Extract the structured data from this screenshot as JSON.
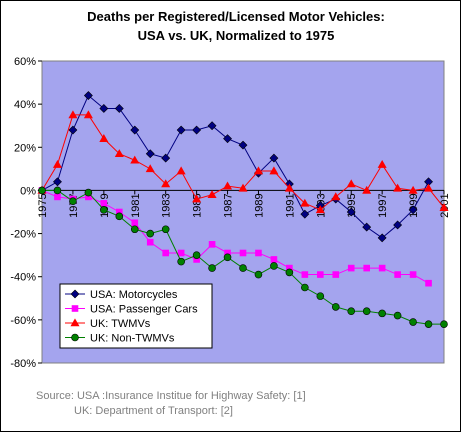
{
  "chart_data": {
    "type": "line",
    "title": [
      "Deaths per Registered/Licensed Motor Vehicles:",
      "USA vs. UK, Normalized to 1975"
    ],
    "x": [
      1975,
      1976,
      1977,
      1978,
      1979,
      1980,
      1981,
      1982,
      1983,
      1984,
      1985,
      1986,
      1987,
      1988,
      1989,
      1990,
      1991,
      1992,
      1993,
      1994,
      1995,
      1996,
      1997,
      1998,
      1999,
      2000,
      2001
    ],
    "xlim": [
      1975,
      2001
    ],
    "xticks": [
      1975,
      1977,
      1979,
      1981,
      1983,
      1985,
      1987,
      1989,
      1991,
      1993,
      1995,
      1997,
      1999,
      2001
    ],
    "ylim": [
      -80,
      60
    ],
    "yticks": [
      {
        "value": -80,
        "label": "-80%"
      },
      {
        "value": -60,
        "label": "-60%"
      },
      {
        "value": -40,
        "label": "-40%"
      },
      {
        "value": -20,
        "label": "-20%"
      },
      {
        "value": 0,
        "label": "0%"
      },
      {
        "value": 20,
        "label": "20%"
      },
      {
        "value": 40,
        "label": "40%"
      },
      {
        "value": 60,
        "label": "60%"
      }
    ],
    "legend": "bottom-left",
    "series": [
      {
        "name": "USA: Motorcycles",
        "color": "#000080",
        "marker": "diamond",
        "values": [
          0,
          4,
          28,
          44,
          38,
          38,
          28,
          17,
          15,
          28,
          28,
          30,
          24,
          21,
          8,
          15,
          3,
          -11,
          -7,
          -4,
          -10,
          -17,
          -22,
          -16,
          -9,
          4,
          null
        ]
      },
      {
        "name": "USA: Passenger Cars",
        "color": "#ff00ff",
        "marker": "square",
        "values": [
          0,
          -3,
          -4,
          -3,
          -6,
          -10,
          -15,
          -24,
          -29,
          -29,
          -32,
          -25,
          -29,
          -29,
          -29,
          -32,
          -36,
          -39,
          -39,
          -39,
          -36,
          -36,
          -36,
          -39,
          -39,
          -43,
          null
        ]
      },
      {
        "name": "UK: TWMVs",
        "color": "#ff0000",
        "marker": "triangle",
        "values": [
          0,
          12,
          35,
          35,
          24,
          17,
          14,
          10,
          3,
          9,
          -4,
          -2,
          2,
          1,
          9,
          9,
          1,
          -6,
          -9,
          -3,
          3,
          0,
          12,
          1,
          0,
          1,
          -8
        ]
      },
      {
        "name": "UK: Non-TWMVs",
        "color": "#008000",
        "marker": "circle",
        "values": [
          0,
          0,
          -5,
          -1,
          -9,
          -12,
          -18,
          -20,
          -18,
          -33,
          -30,
          -36,
          -31,
          -36,
          -39,
          -35,
          -38,
          -45,
          -49,
          -54,
          -56,
          -56,
          -57,
          -58,
          -61,
          -62,
          -62
        ]
      }
    ],
    "source": [
      "Source:  USA :Insurance Institue for Highway Safety: [1]",
      "UK:   Department of Transport: [2]"
    ]
  }
}
